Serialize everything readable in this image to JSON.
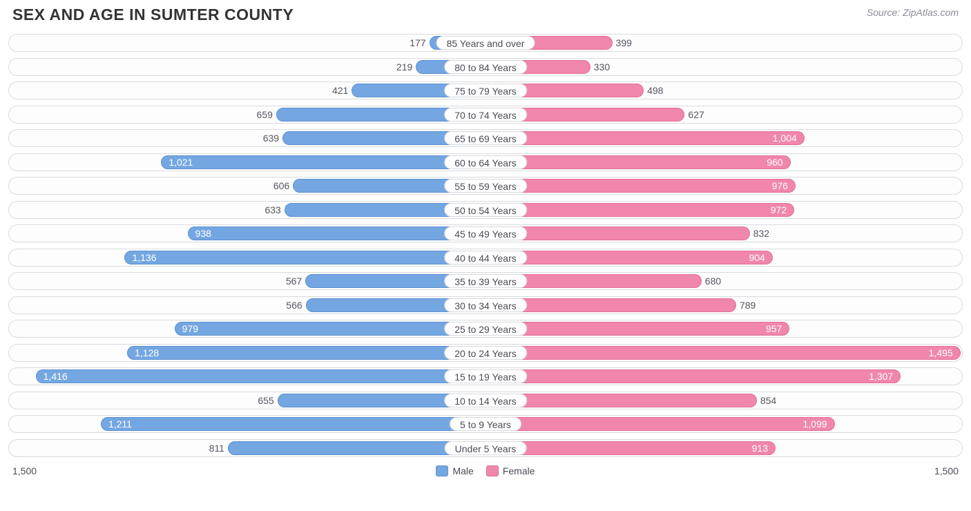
{
  "title": "SEX AND AGE IN SUMTER COUNTY",
  "source": "Source: ZipAtlas.com",
  "chart": {
    "type": "population-pyramid",
    "axis_max": 1500,
    "axis_label_left": "1,500",
    "axis_label_right": "1,500",
    "inside_label_threshold": 900,
    "colors": {
      "male_fill": "#74a7e2",
      "male_border": "#5a90cf",
      "female_fill": "#f186ac",
      "female_border": "#e26f99",
      "track_border": "#d7dade",
      "track_bg": "#fdfdfd",
      "text_outside": "#555560",
      "text_inside": "#ffffff",
      "title_color": "#333336",
      "source_color": "#8a8a97"
    },
    "legend": [
      {
        "label": "Male",
        "color": "#74a7e2"
      },
      {
        "label": "Female",
        "color": "#f186ac"
      }
    ],
    "rows": [
      {
        "category": "85 Years and over",
        "male": 177,
        "male_label": "177",
        "female": 399,
        "female_label": "399"
      },
      {
        "category": "80 to 84 Years",
        "male": 219,
        "male_label": "219",
        "female": 330,
        "female_label": "330"
      },
      {
        "category": "75 to 79 Years",
        "male": 421,
        "male_label": "421",
        "female": 498,
        "female_label": "498"
      },
      {
        "category": "70 to 74 Years",
        "male": 659,
        "male_label": "659",
        "female": 627,
        "female_label": "627"
      },
      {
        "category": "65 to 69 Years",
        "male": 639,
        "male_label": "639",
        "female": 1004,
        "female_label": "1,004"
      },
      {
        "category": "60 to 64 Years",
        "male": 1021,
        "male_label": "1,021",
        "female": 960,
        "female_label": "960"
      },
      {
        "category": "55 to 59 Years",
        "male": 606,
        "male_label": "606",
        "female": 976,
        "female_label": "976"
      },
      {
        "category": "50 to 54 Years",
        "male": 633,
        "male_label": "633",
        "female": 972,
        "female_label": "972"
      },
      {
        "category": "45 to 49 Years",
        "male": 938,
        "male_label": "938",
        "female": 832,
        "female_label": "832"
      },
      {
        "category": "40 to 44 Years",
        "male": 1136,
        "male_label": "1,136",
        "female": 904,
        "female_label": "904"
      },
      {
        "category": "35 to 39 Years",
        "male": 567,
        "male_label": "567",
        "female": 680,
        "female_label": "680"
      },
      {
        "category": "30 to 34 Years",
        "male": 566,
        "male_label": "566",
        "female": 789,
        "female_label": "789"
      },
      {
        "category": "25 to 29 Years",
        "male": 979,
        "male_label": "979",
        "female": 957,
        "female_label": "957"
      },
      {
        "category": "20 to 24 Years",
        "male": 1128,
        "male_label": "1,128",
        "female": 1495,
        "female_label": "1,495"
      },
      {
        "category": "15 to 19 Years",
        "male": 1416,
        "male_label": "1,416",
        "female": 1307,
        "female_label": "1,307"
      },
      {
        "category": "10 to 14 Years",
        "male": 655,
        "male_label": "655",
        "female": 854,
        "female_label": "854"
      },
      {
        "category": "5 to 9 Years",
        "male": 1211,
        "male_label": "1,211",
        "female": 1099,
        "female_label": "1,099"
      },
      {
        "category": "Under 5 Years",
        "male": 811,
        "male_label": "811",
        "female": 913,
        "female_label": "913"
      }
    ]
  }
}
